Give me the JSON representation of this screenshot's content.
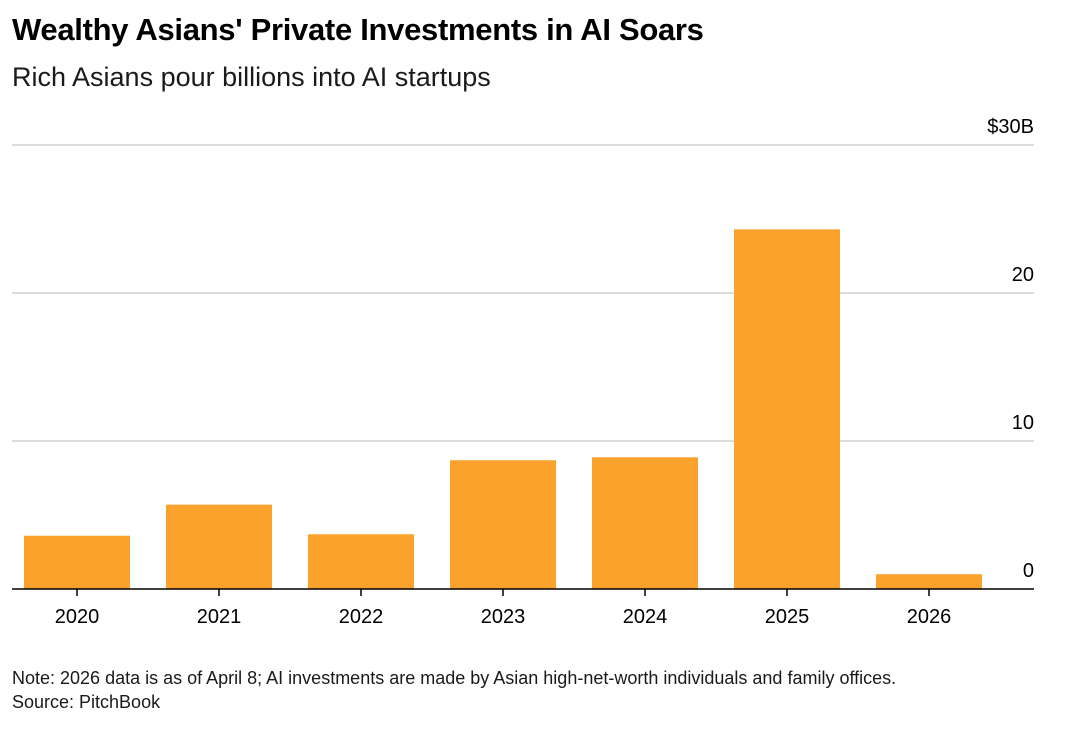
{
  "header": {
    "title": "Wealthy Asians' Private Investments in AI Soars",
    "subtitle": "Rich Asians pour billions into AI startups"
  },
  "footer": {
    "note": "Note: 2026 data is as of April 8; AI investments are made by Asian high-net-worth individuals and family offices.",
    "source": "Source: PitchBook"
  },
  "colors": {
    "bar": "#fba22c",
    "grid": "#dcdcdc",
    "axis": "#000000"
  },
  "chart_data": {
    "type": "bar",
    "title": "Wealthy Asians' Private Investments in AI Soars",
    "subtitle": "Rich Asians pour billions into AI startups",
    "xlabel": "",
    "ylabel": "",
    "categories": [
      "2020",
      "2021",
      "2022",
      "2023",
      "2024",
      "2025",
      "2026"
    ],
    "values": [
      3.6,
      5.7,
      3.7,
      8.7,
      8.9,
      24.3,
      1.0
    ],
    "unit": "billion USD",
    "ylim": [
      0,
      30
    ],
    "yticks": [
      {
        "value": 0,
        "label": "0"
      },
      {
        "value": 10,
        "label": "10"
      },
      {
        "value": 20,
        "label": "20"
      },
      {
        "value": 30,
        "label": "$30B"
      }
    ],
    "y_axis_side": "right",
    "grid": true
  }
}
